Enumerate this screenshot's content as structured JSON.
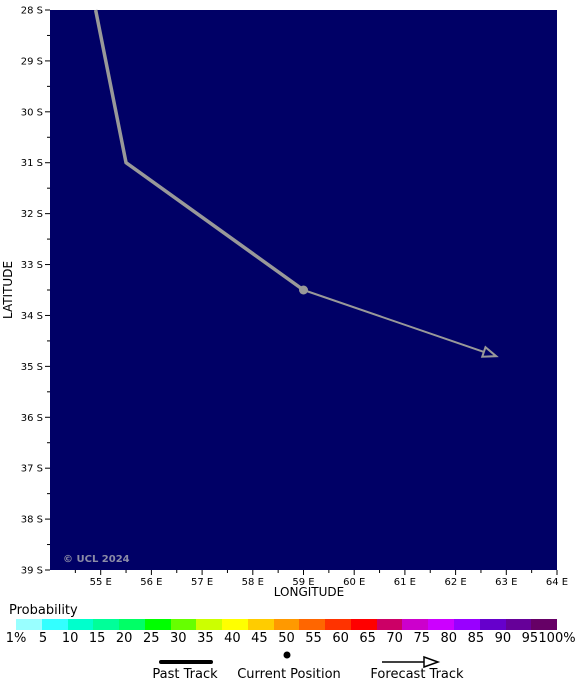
{
  "map": {
    "background_color": "#000066",
    "copyright": "© UCL 2024",
    "x_axis_title": "LONGITUDE",
    "y_axis_title": "LATITUDE",
    "lat_labels": [
      "28 S",
      "29 S",
      "30 S",
      "31 S",
      "32 S",
      "33 S",
      "34 S",
      "35 S",
      "36 S",
      "37 S",
      "38 S",
      "39 S"
    ],
    "lon_labels": [
      "55 E",
      "56 E",
      "57 E",
      "58 E",
      "59 E",
      "60 E",
      "61 E",
      "62 E",
      "63 E",
      "64 E"
    ],
    "past_track": [
      {
        "lat": -28.0,
        "lon": 54.9
      },
      {
        "lat": -31.0,
        "lon": 55.5
      },
      {
        "lat": -33.5,
        "lon": 59.0
      }
    ],
    "current_position": {
      "lat": -33.5,
      "lon": 59.0
    },
    "forecast_track": [
      {
        "lat": -33.5,
        "lon": 59.0
      },
      {
        "lat": -34.8,
        "lon": 62.8
      }
    ],
    "track_color": "#999999"
  },
  "legend": {
    "title": "Probability",
    "colors": [
      "#99ffff",
      "#33ffff",
      "#00ffcc",
      "#00ff99",
      "#00ff66",
      "#00ff00",
      "#66ff00",
      "#ccff00",
      "#ffff00",
      "#ffcc00",
      "#ff9900",
      "#ff6600",
      "#ff3300",
      "#ff0000",
      "#cc0066",
      "#cc00cc",
      "#cc00ff",
      "#9900ff",
      "#6600cc",
      "#660099",
      "#660066"
    ],
    "tick_labels": [
      "1%",
      "5",
      "10",
      "15",
      "20",
      "25",
      "30",
      "35",
      "40",
      "45",
      "50",
      "55",
      "60",
      "65",
      "70",
      "75",
      "80",
      "85",
      "90",
      "95",
      "100%"
    ],
    "past_track_label": "Past Track",
    "current_position_label": "Current Position",
    "forecast_track_label": "Forecast Track"
  }
}
